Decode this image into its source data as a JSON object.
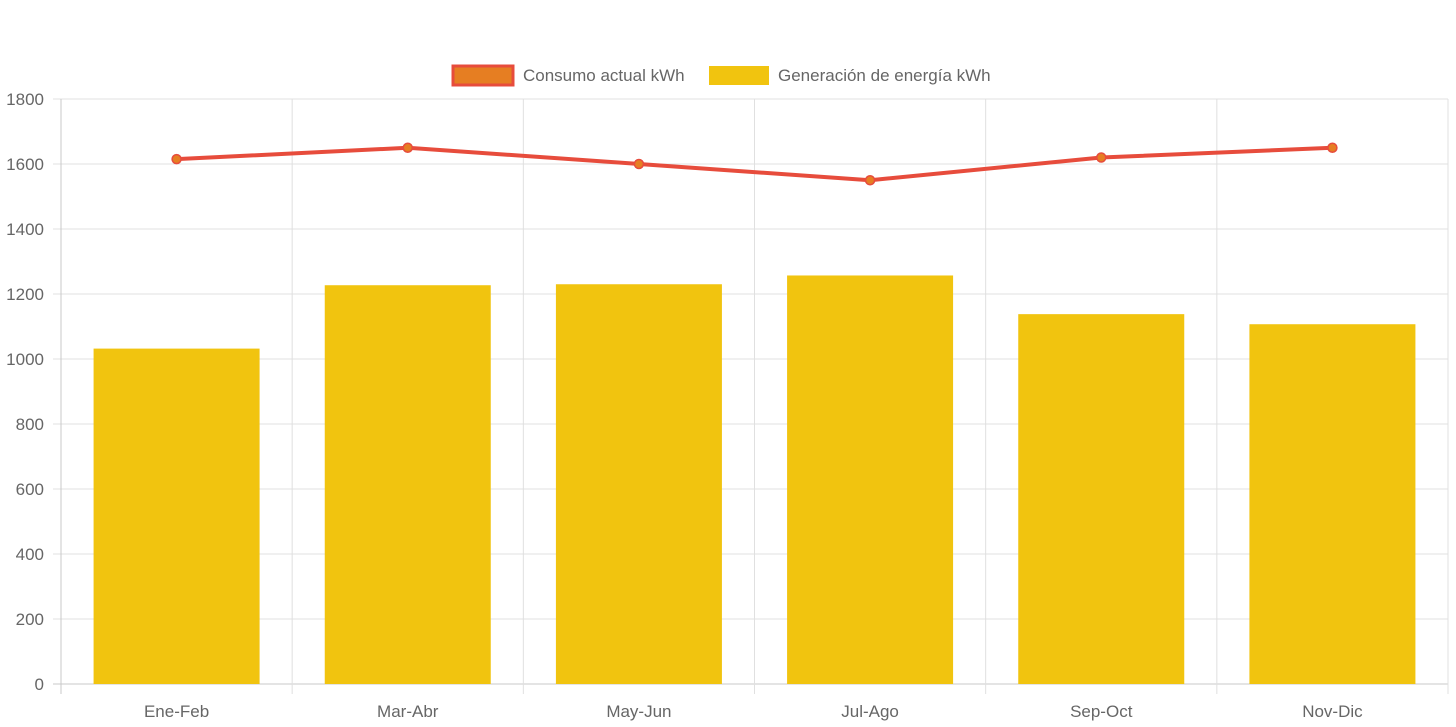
{
  "chart_data": {
    "type": "bar",
    "title": "",
    "xlabel": "",
    "ylabel": "",
    "ylim": [
      0,
      1800
    ],
    "ytick_step": 200,
    "grid": true,
    "legend_position": "top-center",
    "categories": [
      "Ene-Feb",
      "Mar-Abr",
      "May-Jun",
      "Jul-Ago",
      "Sep-Oct",
      "Nov-Dic"
    ],
    "series": [
      {
        "name": "Consumo actual kWh",
        "type": "line",
        "values": [
          1615,
          1650,
          1600,
          1550,
          1620,
          1650
        ],
        "color": "#e74c3c",
        "point_fill": "#e67e22"
      },
      {
        "name": "Generación de energía kWh",
        "type": "bar",
        "values": [
          1032,
          1227,
          1230,
          1257,
          1138,
          1107
        ],
        "color": "#f1c40f"
      }
    ],
    "colors": {
      "grid": "#e0e0e0",
      "axis": "#c8c8c8",
      "text": "#666666"
    }
  }
}
